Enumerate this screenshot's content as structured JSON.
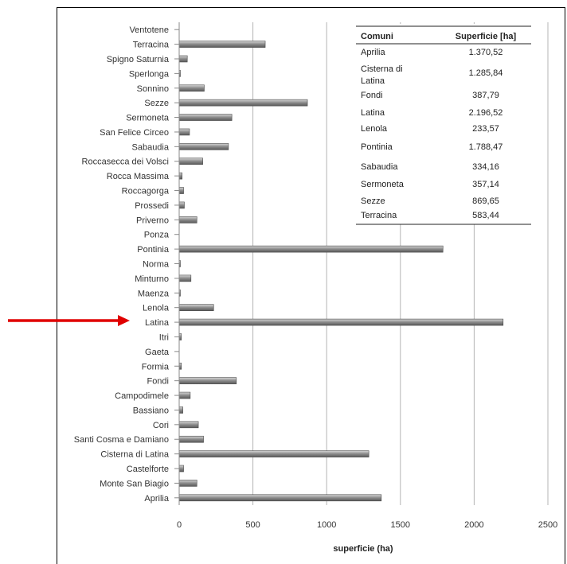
{
  "chart_data": {
    "type": "bar",
    "orientation": "horizontal",
    "xlabel": "superficie (ha)",
    "ylabel": "",
    "xlim": [
      0,
      2500
    ],
    "xticks": [
      0,
      500,
      1000,
      1500,
      2000,
      2500
    ],
    "grid": "vertical",
    "categories": [
      "Ventotene",
      "Terracina",
      "Spigno Saturnia",
      "Sperlonga",
      "Sonnino",
      "Sezze",
      "Sermoneta",
      "San Felice Circeo",
      "Sabaudia",
      "Roccasecca dei Volsci",
      "Rocca Massima",
      "Roccagorga",
      "Prossedi",
      "Priverno",
      "Ponza",
      "Pontinia",
      "Norma",
      "Minturno",
      "Maenza",
      "Lenola",
      "Latina",
      "Itri",
      "Gaeta",
      "Formia",
      "Fondi",
      "Campodimele",
      "Bassiano",
      "Cori",
      "Santi Cosma e Damiano",
      "Cisterna di Latina",
      "Castelforte",
      "Monte San Biagio",
      "Aprilia"
    ],
    "values": [
      0,
      583.44,
      55,
      3,
      170,
      869.65,
      357.14,
      70,
      334.16,
      160,
      20,
      30,
      35,
      120,
      0,
      1788.47,
      3,
      80,
      3,
      233.57,
      2196.52,
      15,
      0,
      15,
      387.79,
      75,
      25,
      130,
      165,
      1285.84,
      30,
      120,
      1370.52
    ],
    "highlight": {
      "category": "Latina",
      "color": "#e00000"
    }
  },
  "table": {
    "headers": [
      "Comuni",
      "Superficie [ha]"
    ],
    "rows": [
      [
        "Aprilia",
        "1.370,52"
      ],
      [
        "Cisterna di Latina",
        "1.285,84"
      ],
      [
        "Fondi",
        "387,79"
      ],
      [
        "Latina",
        "2.196,52"
      ],
      [
        "Lenola",
        "233,57"
      ],
      [
        "Pontinia",
        "1.788,47"
      ],
      [
        "Sabaudia",
        "334,16"
      ],
      [
        "Sermoneta",
        "357,14"
      ],
      [
        "Sezze",
        "869,65"
      ],
      [
        "Terracina",
        "583,44"
      ]
    ]
  },
  "colors": {
    "bar": "#8c8c8c",
    "bar_edge": "#4a4a4a",
    "grid": "#b5b5b5",
    "text": "#333333",
    "arrow": "#e00000"
  }
}
